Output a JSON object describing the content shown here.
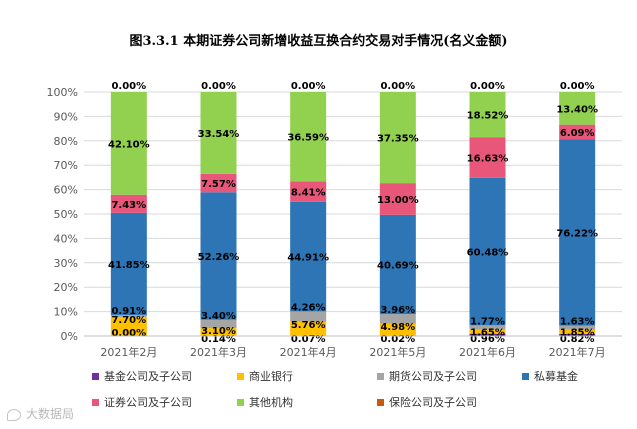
{
  "chart_data": {
    "type": "bar",
    "stacked": true,
    "title": "图3.3.1 本期证券公司新增收益互换合约交易对手情况(名义金额)",
    "categories": [
      "2021年2月",
      "2021年3月",
      "2021年4月",
      "2021年5月",
      "2021年6月",
      "2021年7月"
    ],
    "ylim": [
      0,
      100
    ],
    "yticks": [
      "0%",
      "10%",
      "20%",
      "30%",
      "40%",
      "50%",
      "60%",
      "70%",
      "80%",
      "90%",
      "100%"
    ],
    "series": [
      {
        "name": "基金公司及子公司",
        "color": "#7030a0",
        "values": [
          0.0,
          0.14,
          0.07,
          0.02,
          0.96,
          0.82
        ],
        "labels": [
          "0.00%",
          "0.14%",
          "0.07%",
          "0.02%",
          "0.96%",
          "0.82%"
        ]
      },
      {
        "name": "商业银行",
        "color": "#ffc000",
        "values": [
          7.7,
          3.1,
          5.76,
          4.98,
          1.65,
          1.85
        ],
        "labels": [
          "7.70%",
          "3.10%",
          "5.76%",
          "4.98%",
          "1.65%",
          "1.85%"
        ]
      },
      {
        "name": "期货公司及子公司",
        "color": "#a5a5a5",
        "values": [
          0.91,
          3.4,
          4.26,
          3.96,
          1.77,
          1.63
        ],
        "labels": [
          "0.91%",
          "3.40%",
          "4.26%",
          "3.96%",
          "1.77%",
          "1.63%"
        ]
      },
      {
        "name": "私募基金",
        "color": "#2e75b6",
        "values": [
          41.85,
          52.26,
          44.91,
          40.69,
          60.48,
          76.22
        ],
        "labels": [
          "41.85%",
          "52.26%",
          "44.91%",
          "40.69%",
          "60.48%",
          "76.22%"
        ]
      },
      {
        "name": "证券公司及子公司",
        "color": "#e8567a",
        "values": [
          7.43,
          7.57,
          8.41,
          13.0,
          16.63,
          6.09
        ],
        "labels": [
          "7.43%",
          "7.57%",
          "8.41%",
          "13.00%",
          "16.63%",
          "6.09%"
        ]
      },
      {
        "name": "其他机构",
        "color": "#92d050",
        "values": [
          42.1,
          33.54,
          36.59,
          37.35,
          18.52,
          13.4
        ],
        "labels": [
          "42.10%",
          "33.54%",
          "36.59%",
          "37.35%",
          "18.52%",
          "13.40%"
        ]
      },
      {
        "name": "保险公司及子公司",
        "color": "#c55a11",
        "values": [
          0.0,
          0.0,
          0.0,
          0.0,
          0.0,
          0.0
        ],
        "labels": [
          "0.00%",
          "0.00%",
          "0.00%",
          "0.00%",
          "0.00%",
          "0.00%"
        ]
      }
    ],
    "legend": [
      "基金公司及子公司",
      "商业银行",
      "期货公司及子公司",
      "私募基金",
      "证券公司及子公司",
      "其他机构",
      "保险公司及子公司"
    ]
  },
  "watermark": "大数据局"
}
